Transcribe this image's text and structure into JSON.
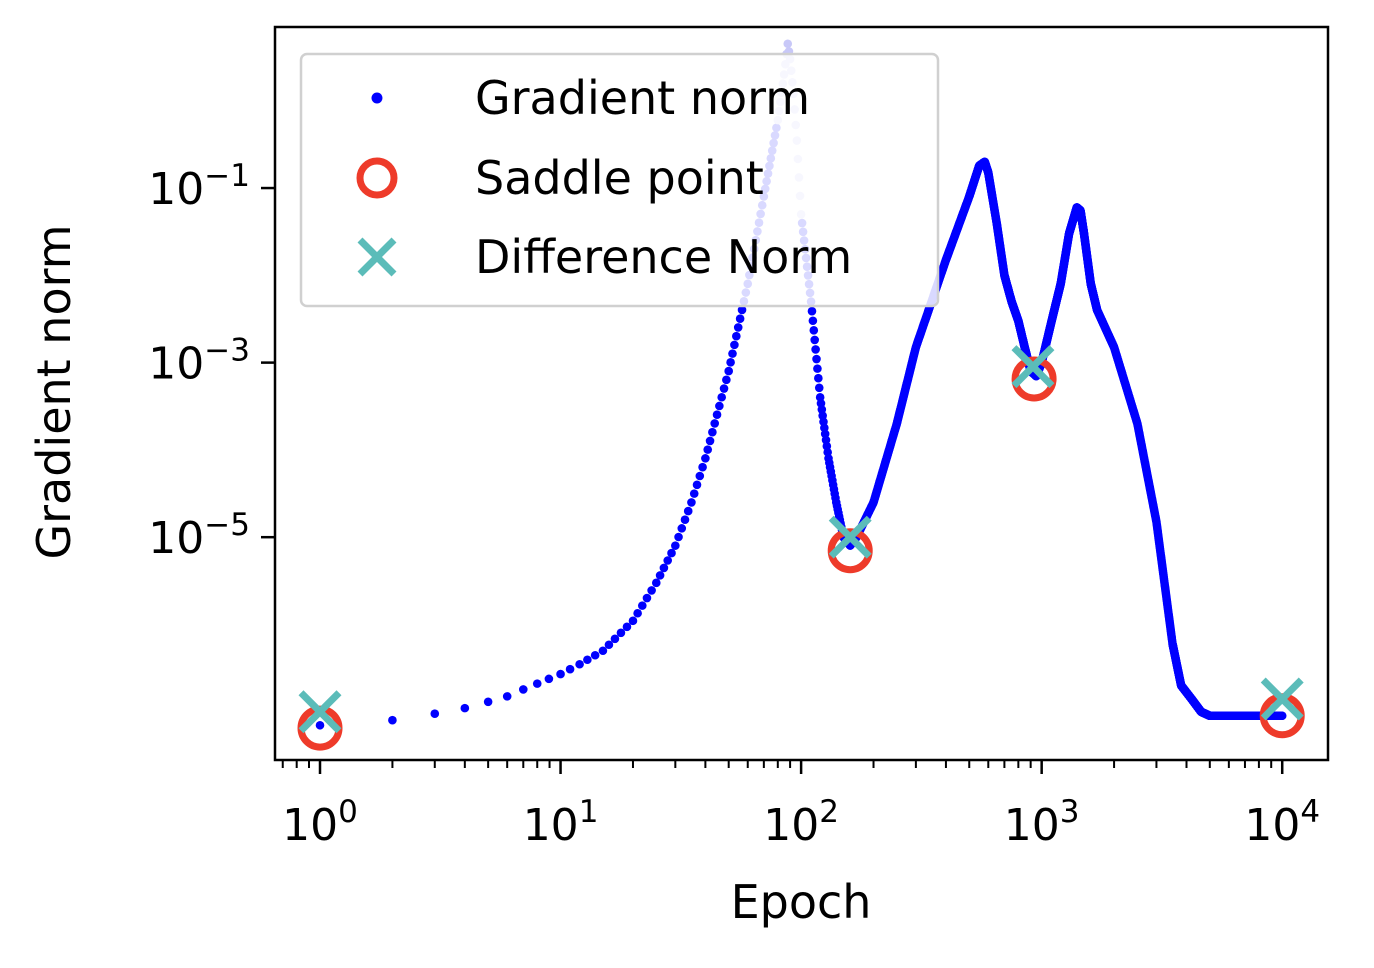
{
  "chart_data": {
    "type": "scatter",
    "xlabel": "Epoch",
    "ylabel": "Gradient norm",
    "xscale": "log",
    "yscale": "log",
    "xlim": [
      0.65,
      15500
    ],
    "ylim": [
      2.8e-08,
      7.0
    ],
    "grid": false,
    "legend_position": "top-left",
    "x_ticks": [
      {
        "base": "10",
        "exp": "0",
        "value": 1
      },
      {
        "base": "10",
        "exp": "1",
        "value": 10
      },
      {
        "base": "10",
        "exp": "2",
        "value": 100
      },
      {
        "base": "10",
        "exp": "3",
        "value": 1000
      },
      {
        "base": "10",
        "exp": "4",
        "value": 10000
      }
    ],
    "y_ticks": [
      {
        "base": "10",
        "exp": "−1",
        "value": 0.1
      },
      {
        "base": "10",
        "exp": "−3",
        "value": 0.001
      },
      {
        "base": "10",
        "exp": "−5",
        "value": 1e-05
      }
    ],
    "series": [
      {
        "name": "Gradient norm",
        "marker": "dot",
        "color": "#0000ff",
        "faded_color": "#c8c8f8",
        "points": [
          [
            1,
            7e-08
          ],
          [
            2,
            8e-08
          ],
          [
            3,
            9.5e-08
          ],
          [
            4,
            1.1e-07
          ],
          [
            5,
            1.3e-07
          ],
          [
            6,
            1.5e-07
          ],
          [
            7,
            1.8e-07
          ],
          [
            8,
            2.1e-07
          ],
          [
            10,
            2.7e-07
          ],
          [
            12,
            3.5e-07
          ],
          [
            15,
            5e-07
          ],
          [
            20,
            1.1e-06
          ],
          [
            25,
            3e-06
          ],
          [
            30,
            8e-06
          ],
          [
            35,
            2.5e-05
          ],
          [
            40,
            8e-05
          ],
          [
            50,
            0.0008
          ],
          [
            60,
            0.008
          ],
          [
            70,
            0.08
          ],
          [
            80,
            0.6
          ],
          [
            85,
            2
          ],
          [
            88,
            4.5
          ],
          [
            90,
            3
          ],
          [
            93,
            1.2
          ],
          [
            96,
            0.35
          ],
          [
            100,
            0.05
          ],
          [
            110,
            0.005
          ],
          [
            120,
            0.0004
          ],
          [
            130,
            8e-05
          ],
          [
            140,
            2.5e-05
          ],
          [
            150,
            1e-05
          ],
          [
            160,
            8e-06
          ],
          [
            170,
            1e-05
          ],
          [
            200,
            2.5e-05
          ],
          [
            250,
            0.0002
          ],
          [
            300,
            0.0015
          ],
          [
            400,
            0.015
          ],
          [
            500,
            0.08
          ],
          [
            550,
            0.18
          ],
          [
            580,
            0.2
          ],
          [
            600,
            0.15
          ],
          [
            650,
            0.04
          ],
          [
            700,
            0.01
          ],
          [
            750,
            0.005
          ],
          [
            800,
            0.003
          ],
          [
            850,
            0.0015
          ],
          [
            900,
            0.0008
          ],
          [
            950,
            0.0007
          ],
          [
            1000,
            0.001
          ],
          [
            1100,
            0.003
          ],
          [
            1200,
            0.008
          ],
          [
            1300,
            0.03
          ],
          [
            1400,
            0.06
          ],
          [
            1450,
            0.055
          ],
          [
            1500,
            0.03
          ],
          [
            1600,
            0.008
          ],
          [
            1700,
            0.004
          ],
          [
            2000,
            0.0015
          ],
          [
            2500,
            0.0002
          ],
          [
            3000,
            1.5e-05
          ],
          [
            3500,
            6e-07
          ],
          [
            3800,
            2e-07
          ],
          [
            4200,
            1.4e-07
          ],
          [
            4600,
            1e-07
          ],
          [
            5000,
            9e-08
          ],
          [
            6000,
            9e-08
          ],
          [
            8000,
            9e-08
          ],
          [
            10000,
            9e-08
          ]
        ]
      },
      {
        "name": "Saddle point",
        "marker": "open-circle",
        "color": "#ee3b2a",
        "points": [
          [
            1,
            6.5e-08
          ],
          [
            160,
            7e-06
          ],
          [
            930,
            0.00065
          ],
          [
            10000,
            9e-08
          ]
        ]
      },
      {
        "name": "Difference Norm",
        "marker": "x",
        "color": "#5bbcb9",
        "points": [
          [
            1,
            1e-07
          ],
          [
            160,
            1e-05
          ],
          [
            920,
            0.0009
          ],
          [
            10000,
            1.4e-07
          ]
        ]
      }
    ]
  }
}
